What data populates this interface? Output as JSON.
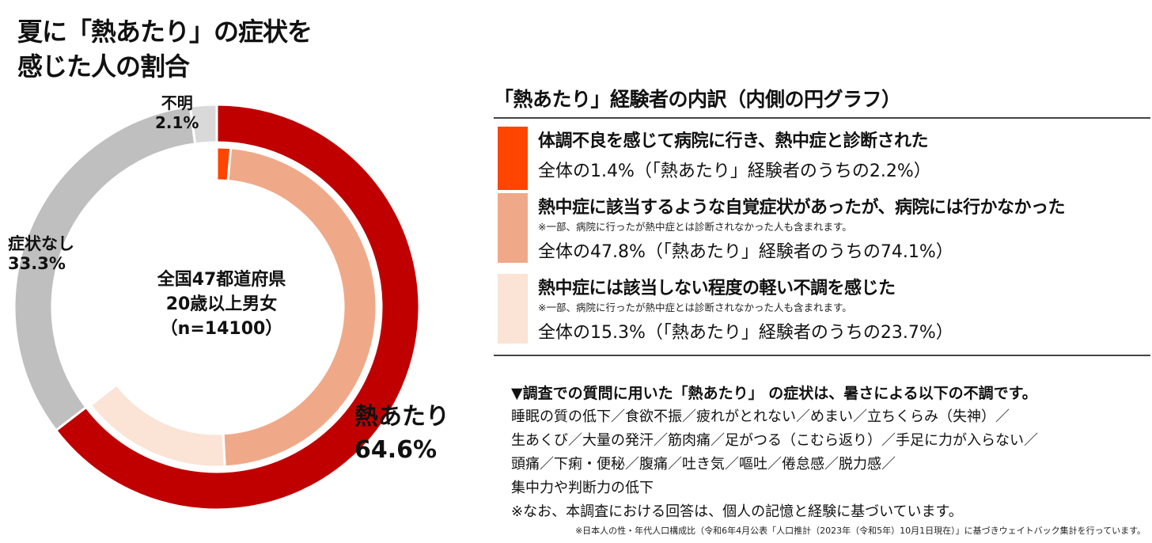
{
  "title": "夏に「熱あたり」の症状を感じた人の割合",
  "center": {
    "line1": "全国47都道府県",
    "line2": "20歳以上男女",
    "line3": "（n=14100）"
  },
  "chart_data": {
    "type": "pie",
    "outer": {
      "slices": [
        {
          "label": "熱あたり",
          "value": 64.6,
          "value_text": "64.6%",
          "color": "#c00000"
        },
        {
          "label": "症状なし",
          "value": 33.3,
          "value_text": "33.3%",
          "color": "#bfbfbf"
        },
        {
          "label": "不明",
          "value": 2.1,
          "value_text": "2.1%",
          "color": "#d9d9d9"
        }
      ]
    },
    "inner": {
      "title": "「熱あたり」経験者の内訳（内側の円グラフ）",
      "slices": [
        {
          "label": "体調不良を感じて病院に行き、熱中症と診断された",
          "value": 1.4,
          "share_of_group": 2.2,
          "color": "#ff4500"
        },
        {
          "label": "熱中症に該当するような自覚症状があったが、病院には行かなかった",
          "value": 47.8,
          "share_of_group": 74.1,
          "color": "#f0a988"
        },
        {
          "label": "熱中症には該当しない程度の軽い不調を感じた",
          "value": 15.3,
          "share_of_group": 23.7,
          "color": "#fbe3d6"
        }
      ]
    }
  },
  "legend": [
    {
      "heading": "体調不良を感じて病院に行き、熱中症と診断された",
      "note": "",
      "value_text": "全体の1.4%（「熱あたり」経験者のうちの2.2%）",
      "color": "#ff4500"
    },
    {
      "heading": "熱中症に該当するような自覚症状があったが、病院には行かなかった",
      "note": "※一部、病院に行ったが熱中症とは診断されなかった人も含まれます。",
      "value_text": "全体の47.8%（「熱あたり」経験者のうちの74.1%）",
      "color": "#f0a988"
    },
    {
      "heading": "熱中症には該当しない程度の軽い不調を感じた",
      "note": "※一部、病院に行ったが熱中症とは診断されなかった人も含まれます。",
      "value_text": "全体の15.3%（「熱あたり」経験者のうちの23.7%）",
      "color": "#fbe3d6"
    }
  ],
  "symptoms": {
    "heading": "▼調査での質問に用いた「熱あたり」 の症状は、暑さによる以下の不調です。",
    "lines": [
      "睡眠の質の低下／食欲不振／疲れがとれない／めまい／立ちくらみ（失神）／",
      "生あくび／大量の発汗／筋肉痛／足がつる（こむら返り）／手足に力が入らない／",
      "頭痛／下痢・便秘／腹痛／吐き気／嘔吐／倦怠感／脱力感／",
      "集中力や判断力の低下"
    ],
    "disclaimer": "※なお、本調査における回答は、個人の記憶と経験に基づいています。"
  },
  "footnote": "※日本人の性・年代人口構成比（令和6年4月公表「人口推計（2023年（令和5年）10月1日現在）」に基づきウェイトバック集計を行っています。"
}
